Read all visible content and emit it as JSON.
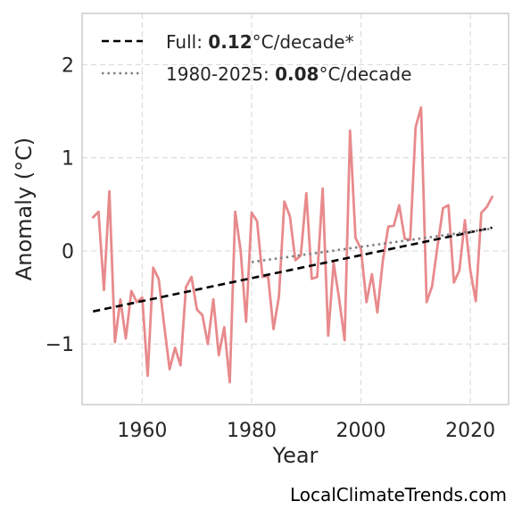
{
  "chart_data": {
    "type": "line",
    "xlabel": "Year",
    "ylabel": "Anomaly (°C)",
    "xlim": [
      1949,
      2027
    ],
    "ylim": [
      -1.65,
      2.55
    ],
    "xticks": [
      1960,
      1980,
      2000,
      2020
    ],
    "yticks": [
      -1,
      0,
      1,
      2
    ],
    "ytick_labels": [
      "−1",
      "0",
      "1",
      "2"
    ],
    "grid": true,
    "legend_position": "top-left",
    "series": [
      {
        "kind": "anomaly",
        "color": "#e88a8c",
        "x": [
          1951,
          1952,
          1953,
          1954,
          1955,
          1956,
          1957,
          1958,
          1959,
          1960,
          1961,
          1962,
          1963,
          1964,
          1965,
          1966,
          1967,
          1968,
          1969,
          1970,
          1971,
          1972,
          1973,
          1974,
          1975,
          1976,
          1977,
          1978,
          1979,
          1980,
          1981,
          1982,
          1983,
          1984,
          1985,
          1986,
          1987,
          1988,
          1989,
          1990,
          1991,
          1992,
          1993,
          1994,
          1995,
          1996,
          1997,
          1998,
          1999,
          2000,
          2001,
          2002,
          2003,
          2004,
          2005,
          2006,
          2007,
          2008,
          2009,
          2010,
          2011,
          2012,
          2013,
          2014,
          2015,
          2016,
          2017,
          2018,
          2019,
          2020,
          2021,
          2022,
          2023,
          2024
        ],
        "y": [
          0.36,
          0.42,
          -0.42,
          0.64,
          -0.98,
          -0.52,
          -0.94,
          -0.43,
          -0.55,
          -0.5,
          -1.34,
          -0.18,
          -0.3,
          -0.79,
          -1.27,
          -1.04,
          -1.23,
          -0.39,
          -0.28,
          -0.63,
          -0.69,
          -1.0,
          -0.52,
          -1.12,
          -0.82,
          -1.41,
          0.42,
          0.0,
          -0.76,
          0.41,
          0.32,
          -0.28,
          -0.27,
          -0.84,
          -0.49,
          0.53,
          0.37,
          -0.1,
          -0.05,
          0.62,
          -0.3,
          -0.28,
          0.67,
          -0.91,
          -0.13,
          -0.51,
          -0.96,
          1.29,
          0.14,
          0.02,
          -0.55,
          -0.25,
          -0.66,
          -0.1,
          0.26,
          0.27,
          0.49,
          0.13,
          0.12,
          1.33,
          1.54,
          -0.55,
          -0.38,
          0.05,
          0.46,
          0.49,
          -0.34,
          -0.21,
          0.33,
          -0.21,
          -0.54,
          0.41,
          0.47,
          0.58
        ]
      },
      {
        "name_prefix": "Full: ",
        "name_value": "0.12",
        "name_suffix": "°C/decade*",
        "color": "#000000",
        "style": "dashed",
        "x": [
          1951,
          2024
        ],
        "y": [
          -0.65,
          0.25
        ]
      },
      {
        "name_prefix": "1980-2025: ",
        "name_value": "0.08",
        "name_suffix": "°C/decade",
        "color": "#808080",
        "style": "dotted",
        "x": [
          1980,
          2024
        ],
        "y": [
          -0.12,
          0.24
        ]
      }
    ],
    "watermark": "LocalClimateTrends.com"
  }
}
